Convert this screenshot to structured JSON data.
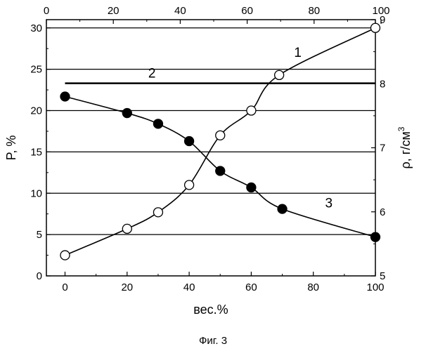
{
  "chart_data": {
    "type": "line",
    "caption": "Фиг. 3",
    "xlabel": "вес.%",
    "ylabel_left": "P, %",
    "ylabel_right_base": "ρ, г/см",
    "ylabel_right_sup": "3",
    "xlim": [
      -6,
      100
    ],
    "ylim_left": [
      0,
      31
    ],
    "ylim_right": [
      5,
      9
    ],
    "x_ticks": [
      0,
      20,
      40,
      60,
      80,
      100
    ],
    "x_top_ticks": [
      0,
      20,
      40,
      60,
      80,
      100
    ],
    "y_left_ticks": [
      0,
      5,
      10,
      15,
      20,
      25,
      30
    ],
    "y_right_ticks": [
      5,
      6,
      7,
      8,
      9
    ],
    "grid": "horizontal",
    "series": [
      {
        "label": "1",
        "axis": "left",
        "marker": "open-circle",
        "x": [
          0,
          20,
          30,
          40,
          50,
          60,
          69,
          100
        ],
        "y": [
          2.5,
          5.7,
          7.7,
          11,
          17,
          20,
          24.3,
          30
        ]
      },
      {
        "label": "2",
        "axis": "left",
        "marker": "none",
        "x": [
          0,
          100
        ],
        "y": [
          23.3,
          23.3
        ]
      },
      {
        "label": "3",
        "axis": "left",
        "marker": "filled-circle",
        "x": [
          0,
          20,
          30,
          40,
          50,
          60,
          70,
          100
        ],
        "y": [
          21.7,
          19.7,
          18.4,
          16.3,
          12.7,
          10.7,
          8.1,
          4.7
        ]
      }
    ],
    "curve_labels": [
      {
        "text": "1",
        "x": 75,
        "y": 26.5
      },
      {
        "text": "2",
        "x": 28,
        "y": 24.0
      },
      {
        "text": "3",
        "x": 85,
        "y": 8.3
      }
    ]
  }
}
